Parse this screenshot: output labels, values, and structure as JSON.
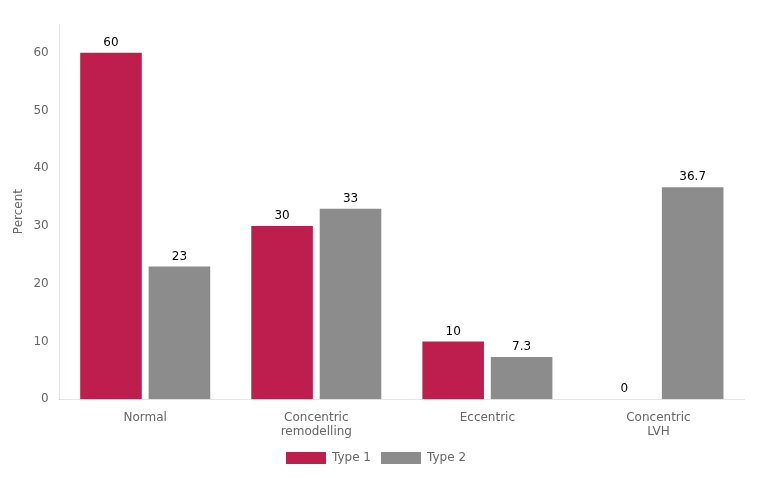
{
  "chart_data": {
    "type": "bar",
    "categories": [
      "Normal",
      "Concentric\nremodelling",
      "Eccentric",
      "Concentric\nLVH"
    ],
    "series": [
      {
        "name": "Type 1",
        "color": "#be1e4e",
        "values": [
          60,
          30,
          10,
          0
        ]
      },
      {
        "name": "Type 2",
        "color": "#8c8c8c",
        "values": [
          23,
          33,
          7.3,
          36.7
        ]
      }
    ],
    "y_label": "Percent",
    "ylim": [
      0,
      65
    ],
    "yticks": [
      0,
      10,
      20,
      30,
      40,
      50,
      60
    ],
    "grid": false,
    "legend": "bottom",
    "data_labels": true
  }
}
